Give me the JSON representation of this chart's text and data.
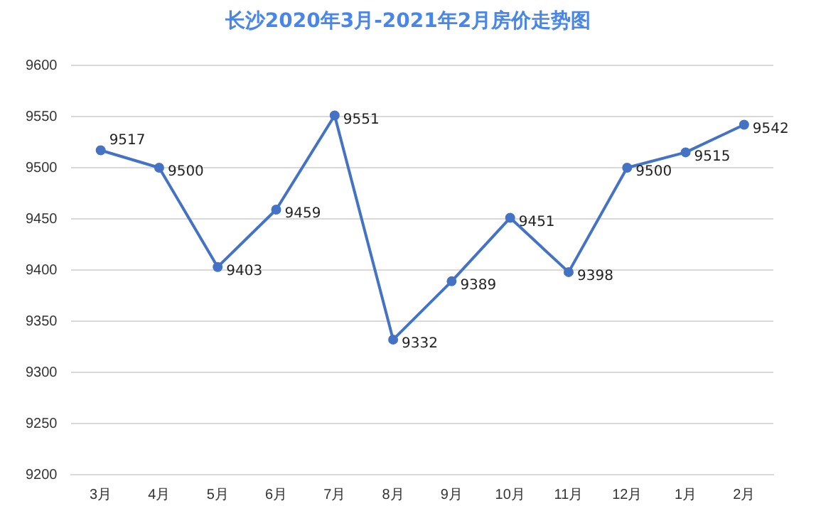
{
  "chart_data": {
    "type": "line",
    "title": "长沙2020年3月-2021年2月房价走势图",
    "categories": [
      "3月",
      "4月",
      "5月",
      "6月",
      "7月",
      "8月",
      "9月",
      "10月",
      "11月",
      "12月",
      "1月",
      "2月"
    ],
    "series": [
      {
        "color": "#4472c4",
        "values": [
          9517,
          9500,
          9403,
          9459,
          9551,
          9332,
          9389,
          9451,
          9398,
          9500,
          9515,
          9542
        ]
      }
    ],
    "ylim": [
      9200,
      9600
    ],
    "yticks": [
      9200,
      9250,
      9300,
      9350,
      9400,
      9450,
      9500,
      9550,
      9600
    ],
    "grid": "y",
    "legend": false,
    "marker": "circle",
    "line_style": "solid",
    "data_labels": true
  }
}
